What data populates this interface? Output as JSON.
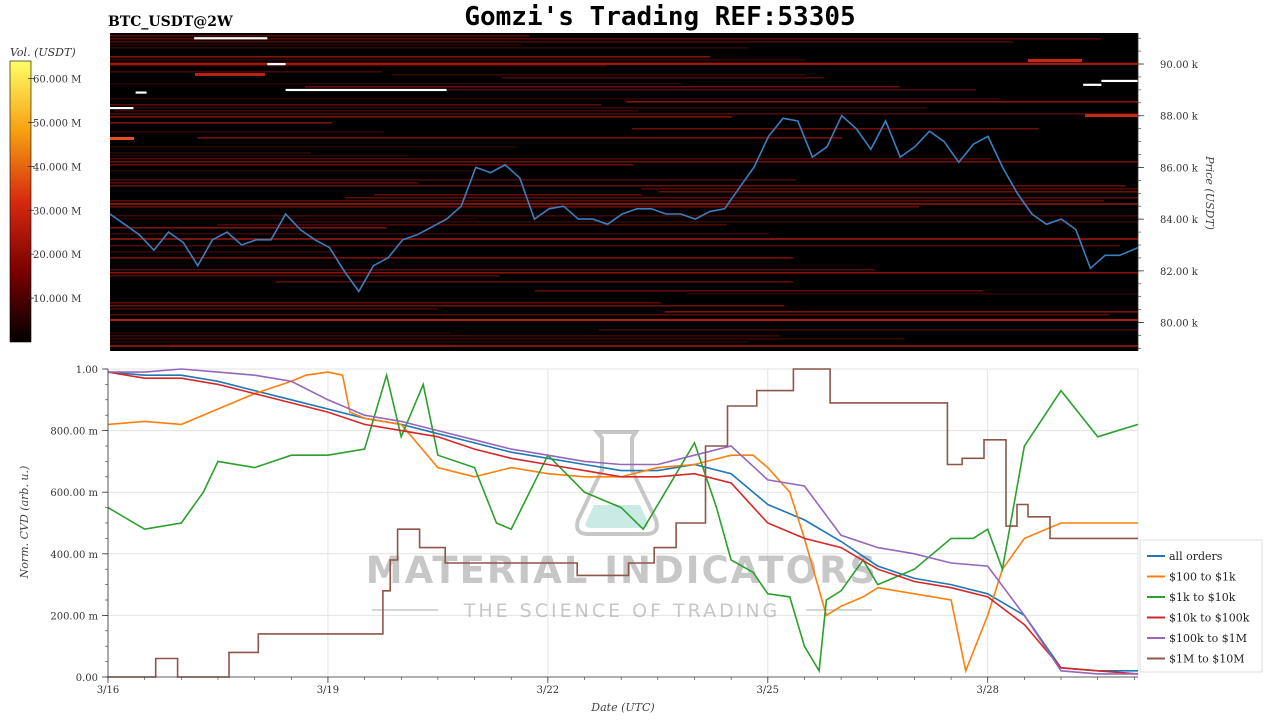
{
  "header": {
    "symbol": "BTC_USDT@2W",
    "title": "Gomzi's Trading REF:53305"
  },
  "watermark": {
    "brand": "MATERIAL INDICATORS",
    "tagline": "THE SCIENCE OF TRADING"
  },
  "colors": {
    "heatmap_bg": "#000000",
    "price_line": "#3a7fbf",
    "wall": "#ffffff",
    "all_orders": "#1f77b4",
    "o_100_1k": "#ff7f0e",
    "o_1k_10k": "#2ca02c",
    "o_10k_100k": "#d62728",
    "o_100k_1m": "#9467bd",
    "o_1m_10m": "#8c564b"
  },
  "chart_data": [
    {
      "type": "heatmap",
      "colorbar": {
        "label": "Vol. (USDT)",
        "ticks": [
          {
            "value": 10,
            "label": "10.000 M"
          },
          {
            "value": 20,
            "label": "20.000 M"
          },
          {
            "value": 30,
            "label": "30.000 M"
          },
          {
            "value": 40,
            "label": "40.000 M"
          },
          {
            "value": 50,
            "label": "50.000 M"
          },
          {
            "value": 60,
            "label": "60.000 M"
          }
        ],
        "range": [
          0,
          64
        ]
      },
      "ylabel": "Price (USDT)",
      "ylim": [
        78900,
        91200
      ],
      "yticks": [
        {
          "value": 80000,
          "label": "80.00 k"
        },
        {
          "value": 82000,
          "label": "82.00 k"
        },
        {
          "value": 84000,
          "label": "84.00 k"
        },
        {
          "value": 86000,
          "label": "86.00 k"
        },
        {
          "value": 88000,
          "label": "88.00 k"
        },
        {
          "value": 90000,
          "label": "90.00 k"
        }
      ],
      "xlim": [
        0,
        14.05
      ],
      "price_series": {
        "x": [
          0,
          0.2,
          0.4,
          0.6,
          0.8,
          1.0,
          1.2,
          1.4,
          1.6,
          1.8,
          2.0,
          2.2,
          2.4,
          2.6,
          2.8,
          3.0,
          3.2,
          3.4,
          3.6,
          3.8,
          4.0,
          4.2,
          4.4,
          4.6,
          4.8,
          5.0,
          5.2,
          5.4,
          5.6,
          5.8,
          6.0,
          6.2,
          6.4,
          6.6,
          6.8,
          7.0,
          7.2,
          7.4,
          7.6,
          7.8,
          8.0,
          8.2,
          8.4,
          8.6,
          8.8,
          9.0,
          9.2,
          9.4,
          9.6,
          9.8,
          10.0,
          10.2,
          10.4,
          10.6,
          10.8,
          11.0,
          11.2,
          11.4,
          11.6,
          11.8,
          12.0,
          12.2,
          12.4,
          12.6,
          12.8,
          13.0,
          13.2,
          13.4,
          13.6,
          13.8,
          14.05
        ],
        "y": [
          84200,
          83800,
          83400,
          82800,
          83500,
          83100,
          82200,
          83200,
          83500,
          83000,
          83200,
          83200,
          84200,
          83600,
          83200,
          82900,
          82000,
          81200,
          82200,
          82500,
          83200,
          83400,
          83700,
          84000,
          84500,
          86000,
          85800,
          86100,
          85600,
          84000,
          84400,
          84500,
          84000,
          84000,
          83800,
          84200,
          84400,
          84400,
          84200,
          84200,
          84000,
          84300,
          84400,
          85200,
          86000,
          87200,
          87900,
          87800,
          86400,
          86800,
          88000,
          87500,
          86700,
          87800,
          86400,
          86800,
          87400,
          87000,
          86200,
          86900,
          87200,
          86000,
          85000,
          84200,
          83800,
          84000,
          83600,
          82100,
          82600,
          82600,
          82900
        ]
      },
      "walls": [
        {
          "price": 91000,
          "x": [
            1.15,
            2.15
          ]
        },
        {
          "price": 90000,
          "x": [
            2.15,
            2.4
          ]
        },
        {
          "price": 88900,
          "x": [
            0.35,
            0.5
          ]
        },
        {
          "price": 88300,
          "x": [
            0,
            0.32
          ]
        },
        {
          "price": 89000,
          "x": [
            2.4,
            4.6
          ]
        },
        {
          "price": 89200,
          "x": [
            13.3,
            13.55
          ]
        },
        {
          "price": 89350,
          "x": [
            13.55,
            14.05
          ]
        }
      ]
    },
    {
      "type": "line",
      "xlabel": "Date (UTC)",
      "ylabel": "Norm. CVD (arb. u.)",
      "xlim": [
        0,
        14.05
      ],
      "ylim": [
        0,
        1
      ],
      "xticks": [
        {
          "value": 0,
          "label": "3/16"
        },
        {
          "value": 3,
          "label": "3/19"
        },
        {
          "value": 6,
          "label": "3/22"
        },
        {
          "value": 9,
          "label": "3/25"
        },
        {
          "value": 12,
          "label": "3/28"
        }
      ],
      "yticks": [
        {
          "value": 0,
          "label": "0.00"
        },
        {
          "value": 0.2,
          "label": "200.00 m"
        },
        {
          "value": 0.4,
          "label": "400.00 m"
        },
        {
          "value": 0.6,
          "label": "600.00 m"
        },
        {
          "value": 0.8,
          "label": "800.00 m"
        },
        {
          "value": 1.0,
          "label": "1.00"
        }
      ],
      "grid": true,
      "legend_position": "bottom-right",
      "series": [
        {
          "name": "all orders",
          "color": "#1f77b4",
          "step": false,
          "x": [
            0,
            0.5,
            1,
            1.5,
            2,
            2.5,
            3,
            3.5,
            4,
            4.5,
            5,
            5.5,
            6,
            6.5,
            7,
            7.5,
            8,
            8.5,
            9,
            9.5,
            10,
            10.5,
            11,
            11.5,
            12,
            12.5,
            13,
            13.5,
            14.05
          ],
          "y": [
            0.99,
            0.98,
            0.98,
            0.96,
            0.93,
            0.9,
            0.87,
            0.84,
            0.82,
            0.79,
            0.76,
            0.73,
            0.71,
            0.69,
            0.67,
            0.67,
            0.69,
            0.66,
            0.56,
            0.51,
            0.44,
            0.36,
            0.32,
            0.3,
            0.27,
            0.2,
            0.03,
            0.02,
            0.02
          ]
        },
        {
          "name": "$100 to $1k",
          "color": "#ff7f0e",
          "step": false,
          "x": [
            0,
            0.5,
            1,
            1.5,
            2,
            2.5,
            2.7,
            3,
            3.2,
            3.3,
            3.5,
            4,
            4.5,
            5,
            5.5,
            6,
            6.5,
            7,
            7.5,
            8,
            8.5,
            8.8,
            9,
            9.3,
            9.5,
            9.8,
            10,
            10.3,
            10.5,
            11,
            11.5,
            11.7,
            12,
            12.2,
            12.5,
            13,
            13.5,
            14.05
          ],
          "y": [
            0.82,
            0.83,
            0.82,
            0.87,
            0.92,
            0.96,
            0.98,
            0.99,
            0.98,
            0.86,
            0.84,
            0.82,
            0.68,
            0.65,
            0.68,
            0.66,
            0.65,
            0.65,
            0.68,
            0.69,
            0.72,
            0.72,
            0.68,
            0.6,
            0.45,
            0.2,
            0.23,
            0.26,
            0.29,
            0.27,
            0.25,
            0.02,
            0.2,
            0.35,
            0.45,
            0.5,
            0.5,
            0.5
          ]
        },
        {
          "name": "$1k to $10k",
          "color": "#2ca02c",
          "step": false,
          "x": [
            0,
            0.5,
            1,
            1.3,
            1.5,
            2,
            2.5,
            3,
            3.5,
            3.8,
            4,
            4.3,
            4.5,
            5,
            5.3,
            5.5,
            6,
            6.5,
            7,
            7.3,
            7.6,
            8,
            8.3,
            8.5,
            8.8,
            9,
            9.3,
            9.5,
            9.7,
            9.8,
            10,
            10.3,
            10.5,
            11,
            11.5,
            11.8,
            12,
            12.2,
            12.5,
            13,
            13.5,
            14.05
          ],
          "y": [
            0.55,
            0.48,
            0.5,
            0.6,
            0.7,
            0.68,
            0.72,
            0.72,
            0.74,
            0.98,
            0.78,
            0.95,
            0.72,
            0.68,
            0.5,
            0.48,
            0.72,
            0.6,
            0.55,
            0.48,
            0.6,
            0.76,
            0.55,
            0.38,
            0.34,
            0.27,
            0.26,
            0.1,
            0.02,
            0.25,
            0.28,
            0.38,
            0.3,
            0.35,
            0.45,
            0.45,
            0.48,
            0.35,
            0.75,
            0.93,
            0.78,
            0.82
          ]
        },
        {
          "name": "$10k to $100k",
          "color": "#d62728",
          "step": false,
          "x": [
            0,
            0.5,
            1,
            1.5,
            2,
            2.5,
            3,
            3.5,
            4,
            4.5,
            5,
            5.5,
            6,
            6.5,
            7,
            7.5,
            8,
            8.5,
            9,
            9.5,
            10,
            10.5,
            11,
            11.5,
            12,
            12.5,
            13,
            13.5,
            14.05
          ],
          "y": [
            0.99,
            0.97,
            0.97,
            0.95,
            0.92,
            0.89,
            0.86,
            0.82,
            0.8,
            0.78,
            0.74,
            0.71,
            0.69,
            0.67,
            0.65,
            0.65,
            0.66,
            0.63,
            0.5,
            0.45,
            0.42,
            0.35,
            0.31,
            0.29,
            0.26,
            0.17,
            0.03,
            0.02,
            0.01
          ]
        },
        {
          "name": "$100k to $1M",
          "color": "#9467bd",
          "step": false,
          "x": [
            0,
            0.5,
            1,
            1.5,
            2,
            2.5,
            3,
            3.5,
            4,
            4.5,
            5,
            5.5,
            6,
            6.5,
            7,
            7.5,
            8,
            8.5,
            9,
            9.5,
            10,
            10.5,
            11,
            11.5,
            12,
            12.5,
            13,
            13.5,
            14.05
          ],
          "y": [
            0.99,
            0.99,
            1.0,
            0.99,
            0.98,
            0.96,
            0.9,
            0.85,
            0.83,
            0.8,
            0.77,
            0.74,
            0.72,
            0.7,
            0.69,
            0.69,
            0.72,
            0.75,
            0.64,
            0.62,
            0.46,
            0.42,
            0.4,
            0.37,
            0.36,
            0.2,
            0.02,
            0.01,
            0.01
          ]
        },
        {
          "name": "$1M to $10M",
          "color": "#8c564b",
          "step": true,
          "x": [
            0,
            0.65,
            0.95,
            1.65,
            2.05,
            2.9,
            3.75,
            3.85,
            3.95,
            4.25,
            4.6,
            6.4,
            7.1,
            7.45,
            7.75,
            8.15,
            8.45,
            8.85,
            9.35,
            9.85,
            11.45,
            11.65,
            11.95,
            12.25,
            12.4,
            12.55,
            12.85,
            14.05
          ],
          "y": [
            0.0,
            0.06,
            0.0,
            0.08,
            0.14,
            0.14,
            0.28,
            0.38,
            0.48,
            0.42,
            0.37,
            0.33,
            0.37,
            0.42,
            0.5,
            0.75,
            0.88,
            0.93,
            1.0,
            0.89,
            0.69,
            0.71,
            0.77,
            0.49,
            0.56,
            0.52,
            0.45,
            0.45
          ]
        }
      ]
    }
  ]
}
